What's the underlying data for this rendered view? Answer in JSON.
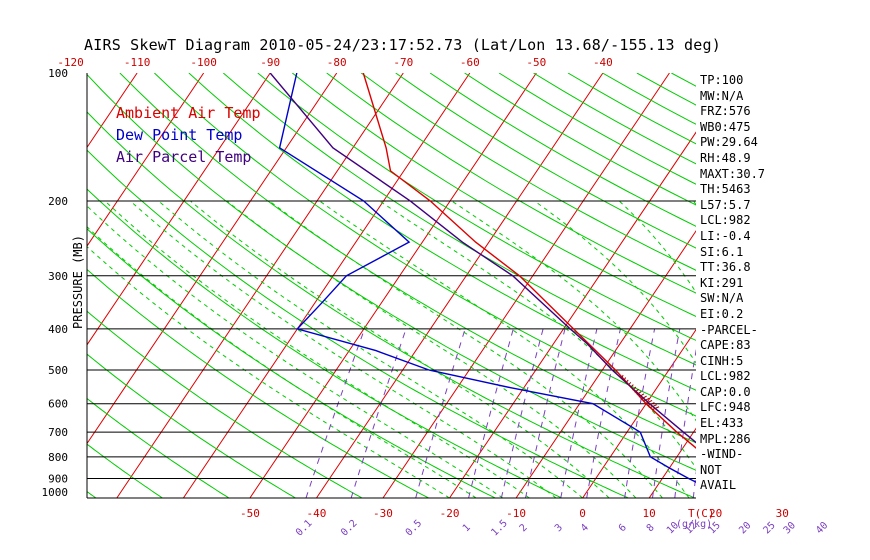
{
  "title": "AIRS SkewT Diagram 2010-05-24/23:17:52.73 (Lat/Lon 13.68/-155.13 deg)",
  "ylabel": "PRESSURE (MB)",
  "legend": [
    {
      "label": "Ambient Air Temp",
      "color": "#dd0000"
    },
    {
      "label": "Dew Point Temp",
      "color": "#0000cc"
    },
    {
      "label": "Air Parcel Temp",
      "color": "#400080"
    }
  ],
  "colors": {
    "isotherm": "#dd0000",
    "dry_adiabat": "#00cc00",
    "moist_adiabat": "#00cc00",
    "mixing_ratio": "#7b3fbf",
    "isobar": "#000000",
    "tick_label": "#cc0000",
    "mixing_label": "#7b3fbf"
  },
  "stats": [
    "TP:100",
    "MW:N/A",
    "FRZ:576",
    "WB0:475",
    "PW:29.64",
    "RH:48.9",
    "MAXT:30.7",
    "TH:5463",
    "L57:5.7",
    "LCL:982",
    "LI:-0.4",
    "SI:6.1",
    "TT:36.8",
    "KI:291",
    "SW:N/A",
    "EI:0.2",
    "-PARCEL-",
    "CAPE:83",
    "CINH:5",
    "LCL:982",
    "CAP:0.0",
    "LFC:948",
    "EL:433",
    "MPL:286",
    "-WIND-",
    "NOT",
    "AVAIL"
  ],
  "top_temp_labels": [
    "-120",
    "-110",
    "-100",
    "-90",
    "-80",
    "-70",
    "-60",
    "-50",
    "-40"
  ],
  "bottom_temp_labels": [
    "-50",
    "-40",
    "-30",
    "-20",
    "-10",
    "0",
    "10",
    "20",
    "30"
  ],
  "bottom_axis_unit": "T(C)",
  "mixing_ratio_labels": [
    "0.1",
    "0.2",
    "0.5",
    "1",
    "1.5",
    "2",
    "3",
    "4",
    "6",
    "8",
    "10",
    "12",
    "15",
    "20",
    "25",
    "30",
    "40"
  ],
  "mixing_ratio_unit": "(g/kg)",
  "chart_data": {
    "type": "line",
    "x_axis": "temperature (C)",
    "y_axis": "pressure (mb), log scale, inverted",
    "pressure_levels": [
      1000,
      900,
      800,
      700,
      600,
      500,
      400,
      300,
      200,
      100
    ],
    "series": [
      {
        "name": "Ambient Air Temp",
        "points": [
          [
            1000,
            29
          ],
          [
            960,
            25
          ],
          [
            900,
            21
          ],
          [
            850,
            17.5
          ],
          [
            800,
            14.5
          ],
          [
            700,
            7.5
          ],
          [
            600,
            0
          ],
          [
            500,
            -8
          ],
          [
            400,
            -18.5
          ],
          [
            300,
            -32
          ],
          [
            250,
            -42
          ],
          [
            200,
            -53
          ],
          [
            170,
            -62
          ],
          [
            150,
            -65
          ],
          [
            100,
            -76
          ]
        ]
      },
      {
        "name": "Dew Point Temp",
        "points": [
          [
            1000,
            24
          ],
          [
            950,
            18
          ],
          [
            900,
            14
          ],
          [
            850,
            10
          ],
          [
            800,
            6
          ],
          [
            700,
            2
          ],
          [
            600,
            -8
          ],
          [
            550,
            -22
          ],
          [
            500,
            -36
          ],
          [
            450,
            -46
          ],
          [
            400,
            -60
          ],
          [
            350,
            -59
          ],
          [
            300,
            -58
          ],
          [
            250,
            -52
          ],
          [
            200,
            -63
          ],
          [
            150,
            -81
          ],
          [
            100,
            -86
          ]
        ]
      },
      {
        "name": "Air Parcel Temp",
        "points": [
          [
            1000,
            29
          ],
          [
            982,
            28
          ],
          [
            948,
            25.5
          ],
          [
            900,
            22
          ],
          [
            800,
            15.5
          ],
          [
            700,
            8.5
          ],
          [
            600,
            0.5
          ],
          [
            500,
            -8.5
          ],
          [
            433,
            -15
          ],
          [
            400,
            -19
          ],
          [
            300,
            -33
          ],
          [
            250,
            -44
          ],
          [
            200,
            -56
          ],
          [
            150,
            -73
          ],
          [
            100,
            -90
          ]
        ]
      }
    ]
  }
}
